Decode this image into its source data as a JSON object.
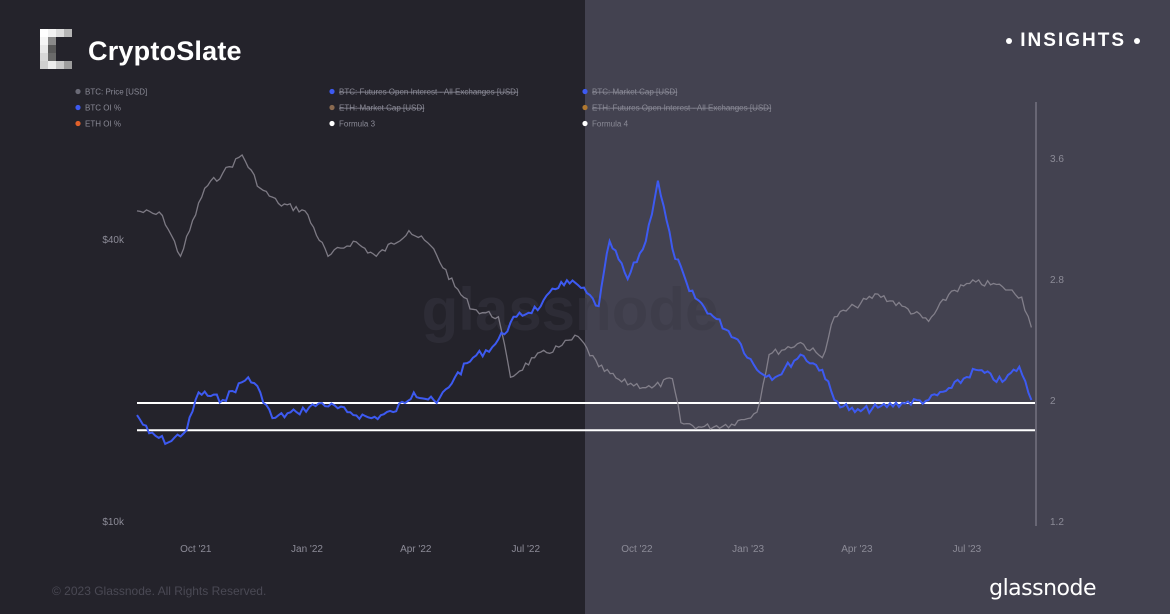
{
  "header": {
    "brand": "CryptoSlate",
    "insights": "INSIGHTS"
  },
  "footer": {
    "copyright": "© 2023 Glassnode. All Rights Reserved.",
    "logo_text": "glassnode"
  },
  "watermark": "glassnode",
  "colors": {
    "left_bg": "#24232b",
    "right_bg": "#434250",
    "btc_oi_pct": "#3d5af1",
    "btc_price": "#8d8a94",
    "formula": "#ffffff"
  },
  "legend": [
    {
      "label": "BTC: Price [USD]",
      "color": "#6a6a76",
      "struck": false
    },
    {
      "label": "BTC: Futures Open Interest - All Exchanges [USD]",
      "color": "#3d5af1",
      "struck": true
    },
    {
      "label": "BTC: Market Cap [USD]",
      "color": "#3d5af1",
      "struck": true
    },
    {
      "label": "BTC OI %",
      "color": "#3d5af1",
      "struck": false
    },
    {
      "label": "ETH: Market Cap [USD]",
      "color": "#8a6a50",
      "struck": true
    },
    {
      "label": "ETH: Futures Open Interest - All Exchanges [USD]",
      "color": "#b07830",
      "struck": true
    },
    {
      "label": "ETH OI %",
      "color": "#e0602a",
      "struck": false
    },
    {
      "label": "Formula 3",
      "color": "#ffffff",
      "struck": false
    },
    {
      "label": "Formula 4",
      "color": "#ffffff",
      "struck": false
    }
  ],
  "chart_data": {
    "type": "line",
    "x_ticks": [
      "Oct '21",
      "Jan '22",
      "Apr '22",
      "Jul '22",
      "Oct '22",
      "Jan '23",
      "Apr '23",
      "Jul '23"
    ],
    "y_left_ticks": [
      "$40k",
      "$10k"
    ],
    "y_right_ticks": [
      "3.6",
      "2.8",
      "2",
      "1.2"
    ],
    "ylim_right": [
      1.2,
      3.8
    ],
    "x_range": [
      "2021-08-15",
      "2023-08-28"
    ],
    "series": [
      {
        "name": "BTC: Price [USD]",
        "scale": "right",
        "points": [
          [
            "2021-08-15",
            3.25
          ],
          [
            "2021-09-05",
            3.22
          ],
          [
            "2021-09-20",
            2.95
          ],
          [
            "2021-10-10",
            3.4
          ],
          [
            "2021-10-25",
            3.5
          ],
          [
            "2021-11-10",
            3.62
          ],
          [
            "2021-11-25",
            3.4
          ],
          [
            "2021-12-10",
            3.3
          ],
          [
            "2022-01-01",
            3.25
          ],
          [
            "2022-01-20",
            2.95
          ],
          [
            "2022-02-10",
            3.05
          ],
          [
            "2022-03-01",
            2.95
          ],
          [
            "2022-03-28",
            3.12
          ],
          [
            "2022-04-15",
            3.02
          ],
          [
            "2022-05-05",
            2.75
          ],
          [
            "2022-05-20",
            2.6
          ],
          [
            "2022-06-10",
            2.55
          ],
          [
            "2022-06-20",
            2.15
          ],
          [
            "2022-07-10",
            2.28
          ],
          [
            "2022-07-30",
            2.35
          ],
          [
            "2022-08-15",
            2.42
          ],
          [
            "2022-09-01",
            2.22
          ],
          [
            "2022-09-20",
            2.12
          ],
          [
            "2022-10-15",
            2.08
          ],
          [
            "2022-11-01",
            2.14
          ],
          [
            "2022-11-08",
            1.85
          ],
          [
            "2022-11-25",
            1.82
          ],
          [
            "2022-12-20",
            1.84
          ],
          [
            "2023-01-10",
            1.92
          ],
          [
            "2023-01-20",
            2.3
          ],
          [
            "2023-02-15",
            2.38
          ],
          [
            "2023-03-05",
            2.28
          ],
          [
            "2023-03-15",
            2.55
          ],
          [
            "2023-04-01",
            2.62
          ],
          [
            "2023-04-20",
            2.7
          ],
          [
            "2023-05-10",
            2.62
          ],
          [
            "2023-06-01",
            2.52
          ],
          [
            "2023-06-20",
            2.72
          ],
          [
            "2023-07-10",
            2.78
          ],
          [
            "2023-08-01",
            2.75
          ],
          [
            "2023-08-17",
            2.68
          ],
          [
            "2023-08-25",
            2.48
          ]
        ]
      },
      {
        "name": "BTC OI %",
        "scale": "right",
        "points": [
          [
            "2021-08-15",
            1.9
          ],
          [
            "2021-08-25",
            1.78
          ],
          [
            "2021-09-10",
            1.72
          ],
          [
            "2021-09-25",
            1.8
          ],
          [
            "2021-10-05",
            2.05
          ],
          [
            "2021-10-25",
            2.0
          ],
          [
            "2021-11-15",
            2.15
          ],
          [
            "2021-11-25",
            2.05
          ],
          [
            "2021-12-05",
            1.88
          ],
          [
            "2021-12-25",
            1.92
          ],
          [
            "2022-01-15",
            1.98
          ],
          [
            "2022-02-05",
            1.92
          ],
          [
            "2022-02-25",
            1.88
          ],
          [
            "2022-03-15",
            1.92
          ],
          [
            "2022-04-01",
            2.05
          ],
          [
            "2022-04-20",
            1.98
          ],
          [
            "2022-05-05",
            2.15
          ],
          [
            "2022-05-20",
            2.28
          ],
          [
            "2022-06-05",
            2.35
          ],
          [
            "2022-06-25",
            2.55
          ],
          [
            "2022-07-15",
            2.62
          ],
          [
            "2022-08-01",
            2.78
          ],
          [
            "2022-08-15",
            2.76
          ],
          [
            "2022-09-01",
            2.62
          ],
          [
            "2022-09-10",
            3.05
          ],
          [
            "2022-09-25",
            2.8
          ],
          [
            "2022-10-10",
            3.05
          ],
          [
            "2022-10-20",
            3.45
          ],
          [
            "2022-11-01",
            3.0
          ],
          [
            "2022-11-15",
            2.72
          ],
          [
            "2022-12-05",
            2.55
          ],
          [
            "2022-12-25",
            2.4
          ],
          [
            "2023-01-10",
            2.2
          ],
          [
            "2023-01-25",
            2.15
          ],
          [
            "2023-02-15",
            2.3
          ],
          [
            "2023-03-05",
            2.2
          ],
          [
            "2023-03-15",
            2.0
          ],
          [
            "2023-04-01",
            1.92
          ],
          [
            "2023-04-20",
            1.95
          ],
          [
            "2023-05-10",
            1.98
          ],
          [
            "2023-06-01",
            2.0
          ],
          [
            "2023-06-20",
            2.08
          ],
          [
            "2023-07-10",
            2.2
          ],
          [
            "2023-08-01",
            2.12
          ],
          [
            "2023-08-15",
            2.22
          ],
          [
            "2023-08-25",
            2.0
          ]
        ]
      },
      {
        "name": "Formula 3",
        "scale": "right",
        "constant": 1.98
      },
      {
        "name": "Formula 4",
        "scale": "right",
        "constant": 1.8
      }
    ]
  }
}
